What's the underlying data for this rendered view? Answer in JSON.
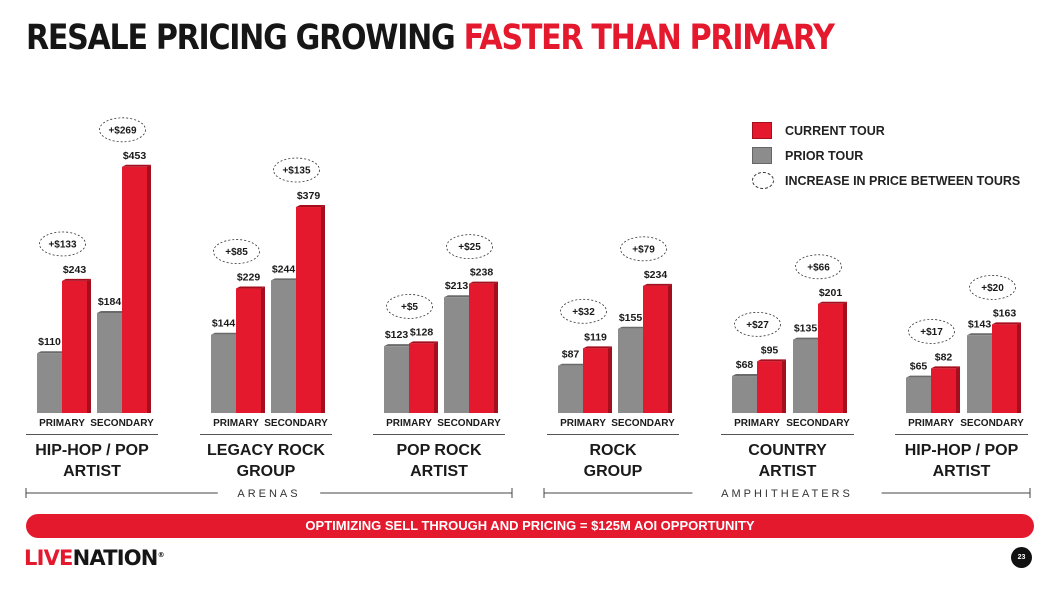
{
  "title": {
    "part1": "RESALE PRICING GROWING",
    "part2": "FASTER THAN PRIMARY"
  },
  "legend": {
    "current": "CURRENT TOUR",
    "prior": "PRIOR TOUR",
    "increase": "INCREASE IN PRICE BETWEEN TOURS"
  },
  "colors": {
    "current": "#e5192e",
    "prior": "#8c8c8c",
    "accent": "#e5192e"
  },
  "chart_data": {
    "type": "bar",
    "series_names": [
      "PRIOR TOUR",
      "CURRENT TOUR"
    ],
    "bar_labels": [
      "PRIMARY",
      "SECONDARY"
    ],
    "groups": [
      {
        "name": [
          "HIP-HOP / POP",
          "ARTIST"
        ],
        "primary": {
          "prior": 110,
          "current": 243,
          "increase": "+$133"
        },
        "secondary": {
          "prior": 184,
          "current": 453,
          "increase": "+$269"
        }
      },
      {
        "name": [
          "LEGACY ROCK",
          "GROUP"
        ],
        "primary": {
          "prior": 144,
          "current": 229,
          "increase": "+$85"
        },
        "secondary": {
          "prior": 244,
          "current": 379,
          "increase": "+$135"
        }
      },
      {
        "name": [
          "POP ROCK",
          "ARTIST"
        ],
        "primary": {
          "prior": 123,
          "current": 128,
          "increase": "+$5"
        },
        "secondary": {
          "prior": 213,
          "current": 238,
          "increase": "+$25"
        }
      },
      {
        "name": [
          "ROCK",
          "GROUP"
        ],
        "primary": {
          "prior": 87,
          "current": 119,
          "increase": "+$32"
        },
        "secondary": {
          "prior": 155,
          "current": 234,
          "increase": "+$79"
        }
      },
      {
        "name": [
          "COUNTRY",
          "ARTIST"
        ],
        "primary": {
          "prior": 68,
          "current": 95,
          "increase": "+$27"
        },
        "secondary": {
          "prior": 135,
          "current": 201,
          "increase": "+$66"
        }
      },
      {
        "name": [
          "HIP-HOP / POP",
          "ARTIST"
        ],
        "primary": {
          "prior": 65,
          "current": 82,
          "increase": "+$17"
        },
        "secondary": {
          "prior": 143,
          "current": 163,
          "increase": "+$20"
        }
      }
    ],
    "venue_groups": [
      {
        "label": "ARENAS",
        "groups": [
          0,
          1,
          2
        ]
      },
      {
        "label": "AMPHITHEATERS",
        "groups": [
          3,
          4,
          5
        ]
      }
    ],
    "value_prefix": "$",
    "ylim": [
      0,
      460
    ]
  },
  "banner": "OPTIMIZING SELL THROUGH AND PRICING = $125M AOI OPPORTUNITY",
  "logo": {
    "part1": "LIVE",
    "part2": "NATION",
    "mark": "®"
  },
  "page_number": "23"
}
